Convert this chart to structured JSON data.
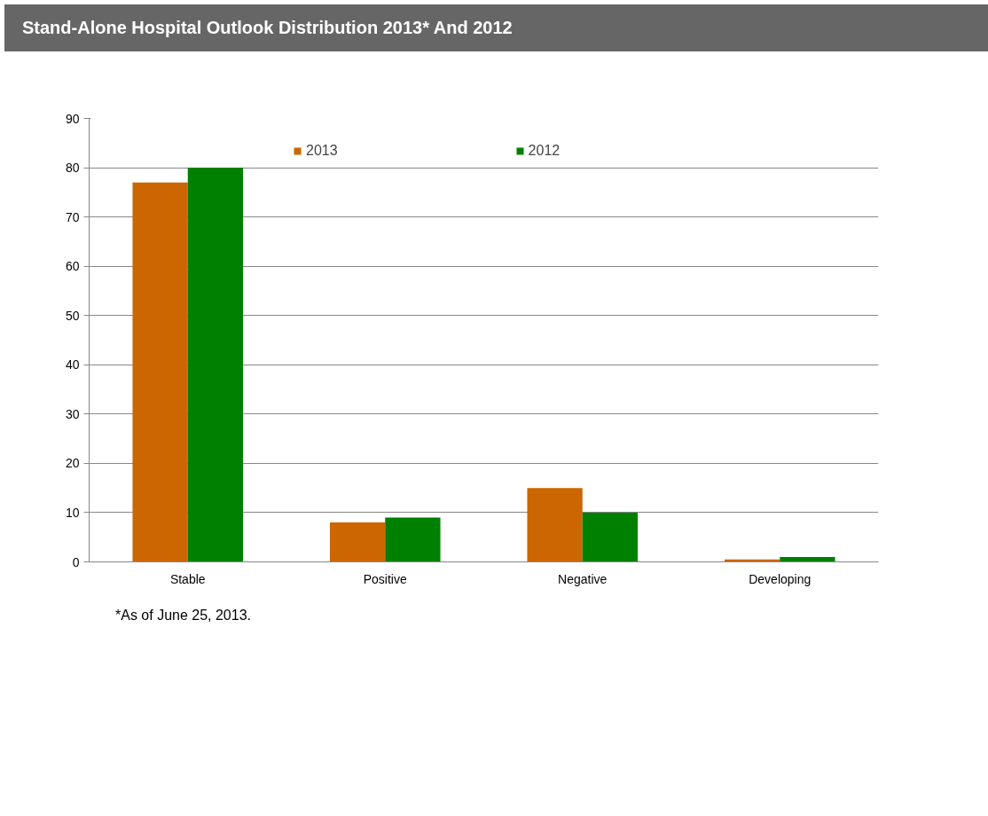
{
  "chart_data": {
    "type": "bar",
    "title": "Stand-Alone Hospital Outlook Distribution 2013* And 2012",
    "categories": [
      "Stable",
      "Positive",
      "Negative",
      "Developing"
    ],
    "series": [
      {
        "name": "2013",
        "color": "#cc6600",
        "values": [
          77,
          8,
          15,
          0.5
        ]
      },
      {
        "name": "2012",
        "color": "#008000",
        "values": [
          80,
          9,
          10,
          1
        ]
      }
    ],
    "ylim": [
      0,
      90
    ],
    "yticks": [
      0,
      10,
      20,
      30,
      40,
      50,
      60,
      70,
      80,
      90
    ],
    "grid": "y",
    "legend": "top",
    "annotations": [
      "*As of June 25, 2013."
    ]
  }
}
